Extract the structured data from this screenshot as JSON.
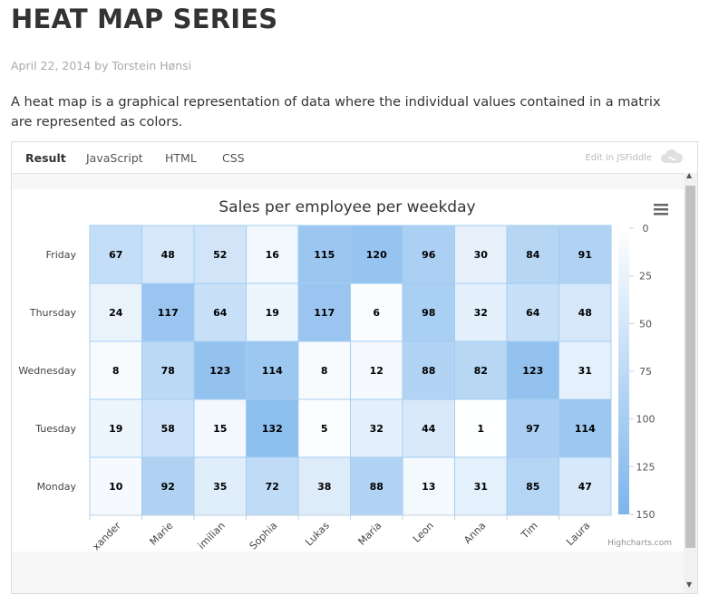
{
  "page": {
    "title": "HEAT MAP SERIES",
    "meta": "April 22, 2014 by Torstein Hønsi",
    "description": "A heat map is a graphical representation of data where the individual values contained in a matrix are represented as colors."
  },
  "frame": {
    "tabs": [
      "Result",
      "JavaScript",
      "HTML",
      "CSS"
    ],
    "active_tab": "Result",
    "edit_link": "Edit in JSFiddle"
  },
  "chart_data": {
    "type": "heatmap",
    "title": "Sales per employee per weekday",
    "x_categories": [
      "Alexander",
      "Marie",
      "Maximilian",
      "Sophia",
      "Lukas",
      "Maria",
      "Leon",
      "Anna",
      "Tim",
      "Laura"
    ],
    "x_tick_labels": [
      "xander",
      "Marie",
      "imilian",
      "Sophia",
      "Lukas",
      "Maria",
      "Leon",
      "Anna",
      "Tim",
      "Laura"
    ],
    "y_categories": [
      "Monday",
      "Tuesday",
      "Wednesday",
      "Thursday",
      "Friday"
    ],
    "values": {
      "Friday": [
        67,
        48,
        52,
        16,
        115,
        120,
        96,
        30,
        84,
        91
      ],
      "Thursday": [
        24,
        117,
        64,
        19,
        117,
        6,
        98,
        32,
        64,
        48
      ],
      "Wednesday": [
        8,
        78,
        123,
        114,
        8,
        12,
        88,
        82,
        123,
        31
      ],
      "Tuesday": [
        19,
        58,
        15,
        132,
        5,
        32,
        44,
        1,
        97,
        114
      ],
      "Monday": [
        10,
        92,
        35,
        72,
        38,
        88,
        13,
        31,
        85,
        47
      ]
    },
    "color_axis": {
      "min": 0,
      "max": 150,
      "min_color": "#FFFFFF",
      "max_color": "#7CB5EC",
      "ticks": [
        0,
        25,
        50,
        75,
        100,
        125,
        150
      ],
      "legend_position": "right"
    },
    "cell_border_color": "#A4CDF2",
    "credits": "Highcharts.com"
  }
}
